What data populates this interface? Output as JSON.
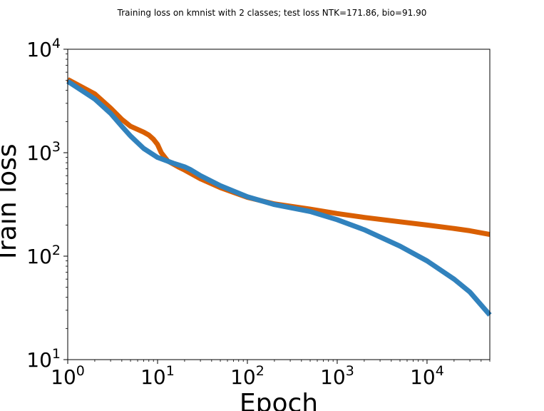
{
  "chart_data": {
    "type": "line",
    "title": "Training loss on kmnist with 2 classes; test loss NTK=171.86, bio=91.90",
    "xlabel": "Epoch",
    "ylabel": "Train loss",
    "xscale": "log",
    "yscale": "log",
    "xlim": [
      1,
      50000
    ],
    "ylim": [
      10,
      10000
    ],
    "grid": false,
    "x_ticks": [
      {
        "value": 1,
        "base": "10",
        "exp": "0"
      },
      {
        "value": 10,
        "base": "10",
        "exp": "1"
      },
      {
        "value": 100,
        "base": "10",
        "exp": "2"
      },
      {
        "value": 1000,
        "base": "10",
        "exp": "3"
      },
      {
        "value": 10000,
        "base": "10",
        "exp": "4"
      }
    ],
    "y_ticks": [
      {
        "value": 10,
        "base": "10",
        "exp": "1"
      },
      {
        "value": 100,
        "base": "10",
        "exp": "2"
      },
      {
        "value": 1000,
        "base": "10",
        "exp": "3"
      },
      {
        "value": 10000,
        "base": "10",
        "exp": "4"
      }
    ],
    "series": [
      {
        "color": "#d95f02",
        "points": [
          [
            1,
            5100
          ],
          [
            2,
            3700
          ],
          [
            3,
            2700
          ],
          [
            4,
            2100
          ],
          [
            5,
            1800
          ],
          [
            7,
            1580
          ],
          [
            8,
            1480
          ],
          [
            9,
            1350
          ],
          [
            10,
            1200
          ],
          [
            11,
            1000
          ],
          [
            13,
            830
          ],
          [
            17,
            730
          ],
          [
            20,
            680
          ],
          [
            30,
            560
          ],
          [
            50,
            460
          ],
          [
            100,
            370
          ],
          [
            200,
            320
          ],
          [
            500,
            285
          ],
          [
            1000,
            258
          ],
          [
            2000,
            237
          ],
          [
            5000,
            215
          ],
          [
            10000,
            200
          ],
          [
            20000,
            185
          ],
          [
            30000,
            176
          ],
          [
            50000,
            162
          ]
        ]
      },
      {
        "color": "#3182bd",
        "points": [
          [
            1,
            4900
          ],
          [
            2,
            3300
          ],
          [
            3,
            2400
          ],
          [
            4,
            1800
          ],
          [
            5,
            1450
          ],
          [
            7,
            1100
          ],
          [
            10,
            900
          ],
          [
            15,
            790
          ],
          [
            20,
            730
          ],
          [
            23,
            690
          ],
          [
            30,
            600
          ],
          [
            50,
            480
          ],
          [
            100,
            375
          ],
          [
            200,
            315
          ],
          [
            500,
            270
          ],
          [
            1000,
            225
          ],
          [
            2000,
            180
          ],
          [
            5000,
            125
          ],
          [
            10000,
            90
          ],
          [
            20000,
            60
          ],
          [
            30000,
            45
          ],
          [
            50000,
            27
          ]
        ]
      }
    ]
  }
}
